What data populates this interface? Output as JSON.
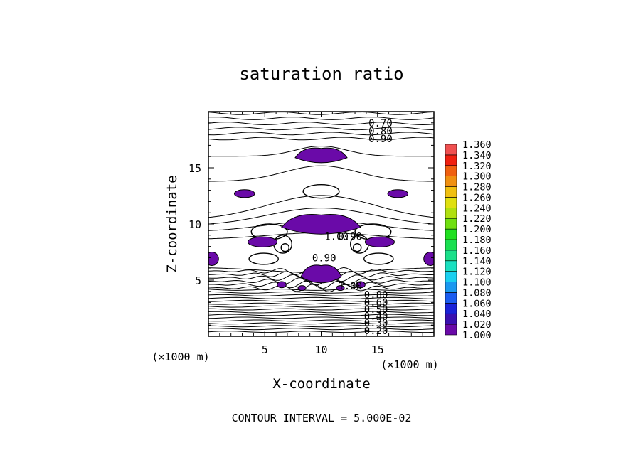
{
  "chart_data": {
    "type": "contour",
    "title": "saturation ratio",
    "xlabel": "X-coordinate",
    "ylabel": "Z-coordinate",
    "x_unit_label_left": "(×1000 m)",
    "x_unit_label_right": "(×1000 m)",
    "xlim": [
      0,
      20
    ],
    "ylim": [
      0,
      20
    ],
    "x_ticks": [
      5,
      10,
      15
    ],
    "y_ticks": [
      5,
      10,
      15
    ],
    "footer": "CONTOUR INTERVAL = 5.000E-02",
    "contour_labels": [
      {
        "text": "0.70",
        "x": 14.2,
        "z": 19.0
      },
      {
        "text": "0.80",
        "x": 14.2,
        "z": 18.3
      },
      {
        "text": "0.90",
        "x": 14.2,
        "z": 17.6
      },
      {
        "text": "1.00",
        "x": 10.3,
        "z": 8.9
      },
      {
        "text": "0.90",
        "x": 11.5,
        "z": 8.9
      },
      {
        "text": "0.90",
        "x": 9.2,
        "z": 7.0
      },
      {
        "text": "1.00",
        "x": 11.5,
        "z": 4.5
      },
      {
        "text": "0.80",
        "x": 13.8,
        "z": 3.7
      },
      {
        "text": "0.60",
        "x": 13.8,
        "z": 3.0
      },
      {
        "text": "0.50",
        "x": 13.8,
        "z": 2.4
      },
      {
        "text": "0.40",
        "x": 13.8,
        "z": 1.8
      },
      {
        "text": "0.30",
        "x": 13.8,
        "z": 1.2
      },
      {
        "text": "0.20",
        "x": 13.8,
        "z": 0.5
      }
    ],
    "colorbar": {
      "levels": [
        "1.000",
        "1.020",
        "1.040",
        "1.060",
        "1.080",
        "1.100",
        "1.120",
        "1.140",
        "1.160",
        "1.180",
        "1.200",
        "1.220",
        "1.240",
        "1.260",
        "1.280",
        "1.300",
        "1.320",
        "1.340",
        "1.360"
      ],
      "colors": [
        "#6a0aa8",
        "#3a10b0",
        "#1a22d8",
        "#1a5cf0",
        "#1a98f0",
        "#1ad0f0",
        "#1ae0c0",
        "#1ae08a",
        "#1ae050",
        "#20e020",
        "#70e010",
        "#b0e010",
        "#e0e010",
        "#f0c010",
        "#f09010",
        "#f06010",
        "#f02010",
        "#f05050",
        "#f09090"
      ]
    },
    "colors": {
      "fill": "#6a0aa8",
      "line": "#000000"
    }
  }
}
